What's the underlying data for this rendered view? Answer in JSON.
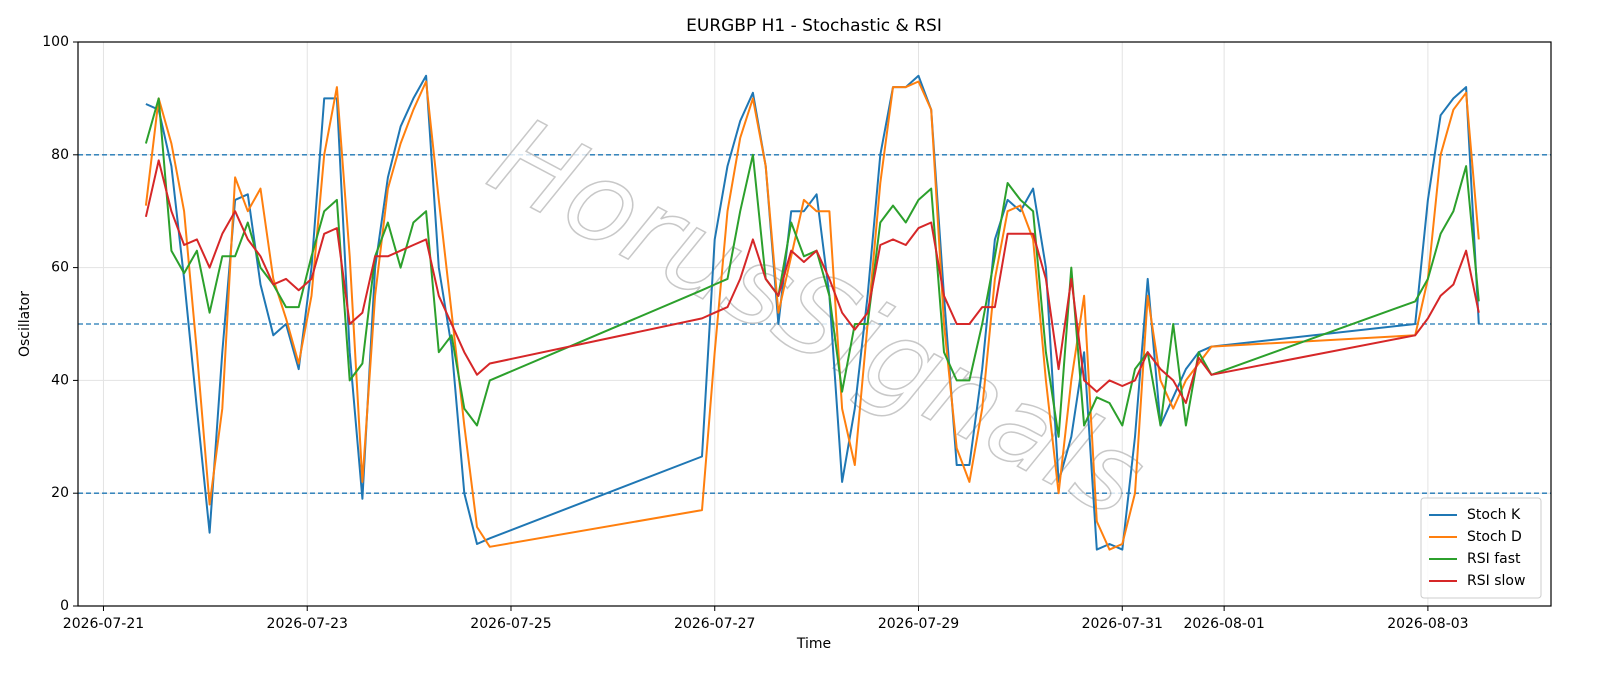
{
  "chart_data": {
    "type": "line",
    "title": "EURGBP H1 - Stochastic & RSI",
    "x_label": "Time",
    "y_label": "Oscillator",
    "watermark": "HorusSignals",
    "x": [
      "2026-07-21 10:00",
      "2026-07-21 13:00",
      "2026-07-21 16:00",
      "2026-07-21 19:00",
      "2026-07-21 22:00",
      "2026-07-22 01:00",
      "2026-07-22 04:00",
      "2026-07-22 07:00",
      "2026-07-22 10:00",
      "2026-07-22 13:00",
      "2026-07-22 16:00",
      "2026-07-22 19:00",
      "2026-07-22 22:00",
      "2026-07-23 01:00",
      "2026-07-23 04:00",
      "2026-07-23 07:00",
      "2026-07-23 10:00",
      "2026-07-23 13:00",
      "2026-07-23 16:00",
      "2026-07-23 19:00",
      "2026-07-23 22:00",
      "2026-07-24 01:00",
      "2026-07-24 04:00",
      "2026-07-24 07:00",
      "2026-07-24 10:00",
      "2026-07-24 13:00",
      "2026-07-24 16:00",
      "2026-07-24 19:00",
      "2026-07-26 21:00",
      "2026-07-27 00:00",
      "2026-07-27 03:00",
      "2026-07-27 06:00",
      "2026-07-27 09:00",
      "2026-07-27 12:00",
      "2026-07-27 15:00",
      "2026-07-27 18:00",
      "2026-07-27 21:00",
      "2026-07-28 00:00",
      "2026-07-28 03:00",
      "2026-07-28 06:00",
      "2026-07-28 09:00",
      "2026-07-28 12:00",
      "2026-07-28 15:00",
      "2026-07-28 18:00",
      "2026-07-28 21:00",
      "2026-07-29 00:00",
      "2026-07-29 03:00",
      "2026-07-29 06:00",
      "2026-07-29 09:00",
      "2026-07-29 12:00",
      "2026-07-29 15:00",
      "2026-07-29 18:00",
      "2026-07-29 21:00",
      "2026-07-30 00:00",
      "2026-07-30 03:00",
      "2026-07-30 06:00",
      "2026-07-30 09:00",
      "2026-07-30 12:00",
      "2026-07-30 15:00",
      "2026-07-30 18:00",
      "2026-07-30 21:00",
      "2026-07-31 00:00",
      "2026-07-31 03:00",
      "2026-07-31 06:00",
      "2026-07-31 09:00",
      "2026-07-31 12:00",
      "2026-07-31 15:00",
      "2026-07-31 18:00",
      "2026-07-31 21:00",
      "2026-08-02 21:00",
      "2026-08-03 00:00",
      "2026-08-03 03:00",
      "2026-08-03 06:00",
      "2026-08-03 09:00",
      "2026-08-03 12:00"
    ],
    "series": [
      {
        "name": "Stoch K",
        "color": "#1f77b4",
        "values": [
          89,
          88,
          78,
          58,
          35,
          13,
          45,
          72,
          73,
          57,
          48,
          50,
          42,
          60,
          90,
          90,
          45,
          19,
          60,
          76,
          85,
          90,
          94,
          60,
          46,
          20,
          11,
          12,
          26.5,
          65,
          78,
          86,
          91,
          78,
          50,
          70,
          70,
          73,
          55,
          22,
          35,
          55,
          80,
          92,
          92,
          94,
          88,
          55,
          25,
          25,
          42,
          65,
          72,
          70,
          74,
          60,
          22,
          30,
          45,
          10,
          11,
          10,
          30,
          58,
          32,
          37,
          42,
          45,
          46,
          50,
          72,
          87,
          90,
          92,
          50
        ]
      },
      {
        "name": "Stoch D",
        "color": "#ff7f0e",
        "values": [
          71,
          90,
          82,
          70,
          45,
          18,
          35,
          76,
          70,
          74,
          58,
          51,
          43,
          55,
          80,
          92,
          62,
          22,
          55,
          74,
          82,
          88,
          93,
          72,
          52,
          32,
          14,
          10.5,
          17,
          45,
          70,
          83,
          90,
          78,
          52,
          62,
          72,
          70,
          70,
          35,
          25,
          50,
          75,
          92,
          92,
          93,
          88,
          50,
          28,
          22,
          35,
          58,
          70,
          71,
          65,
          40,
          20,
          40,
          55,
          15,
          10,
          11,
          20,
          55,
          40,
          35,
          40,
          43,
          46,
          48,
          58,
          80,
          88,
          91,
          65
        ]
      },
      {
        "name": "RSI fast",
        "color": "#2ca02c",
        "values": [
          82,
          90,
          63,
          59,
          63,
          52,
          62,
          62,
          68,
          60,
          57,
          53,
          53,
          62,
          70,
          72,
          40,
          43,
          62,
          68,
          60,
          68,
          70,
          45,
          48,
          35,
          32,
          40,
          56,
          57,
          58,
          70,
          80,
          58,
          55,
          68,
          62,
          63,
          55,
          38,
          50,
          50,
          68,
          71,
          68,
          72,
          74,
          45,
          40,
          40,
          50,
          62,
          75,
          72,
          70,
          45,
          30,
          60,
          32,
          37,
          36,
          32,
          42,
          45,
          32,
          50,
          32,
          45,
          41,
          54,
          58,
          66,
          70,
          78,
          54
        ]
      },
      {
        "name": "RSI slow",
        "color": "#d62728",
        "values": [
          69,
          79,
          70,
          64,
          65,
          60,
          66,
          70,
          65,
          62,
          57,
          58,
          56,
          58,
          66,
          67,
          50,
          52,
          62,
          62,
          63,
          64,
          65,
          55,
          50,
          45,
          41,
          43,
          51,
          52,
          53,
          58,
          65,
          58,
          55,
          63,
          61,
          63,
          58,
          52,
          49,
          52,
          64,
          65,
          64,
          67,
          68,
          55,
          50,
          50,
          53,
          53,
          66,
          66,
          66,
          58,
          42,
          58,
          40,
          38,
          40,
          39,
          40,
          45,
          42,
          40,
          36,
          44,
          41,
          48,
          51,
          55,
          57,
          63,
          52
        ]
      }
    ],
    "xlim": [
      "2026-07-20 18:00",
      "2026-08-04 05:00"
    ],
    "xticks": [
      "2026-07-21",
      "2026-07-23",
      "2026-07-25",
      "2026-07-27",
      "2026-07-29",
      "2026-07-31",
      "2026-08-01",
      "2026-08-03"
    ],
    "ylim": [
      0,
      100
    ],
    "yticks": [
      0,
      20,
      40,
      60,
      80,
      100
    ],
    "hlines": [
      80,
      50,
      20
    ],
    "hline_color": "#1f77b4",
    "grid": true,
    "legend": "lower right"
  }
}
